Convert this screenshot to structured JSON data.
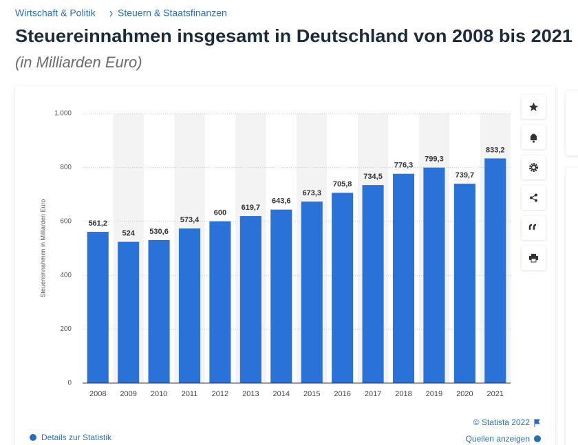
{
  "breadcrumb": [
    "Wirtschaft & Politik",
    "Steuern & Staatsfinanzen"
  ],
  "chart_data": {
    "type": "bar",
    "title": "Steuereinnahmen insgesamt in Deutschland von 2008 bis 2021",
    "subtitle": "(in Milliarden Euro)",
    "y_label": "Steuereinnahmen in Milliarden Euro",
    "categories": [
      "2008",
      "2009",
      "2010",
      "2011",
      "2012",
      "2013",
      "2014",
      "2015",
      "2016",
      "2017",
      "2018",
      "2019",
      "2020",
      "2021"
    ],
    "values": [
      561.2,
      524,
      530.6,
      573.4,
      600,
      619.7,
      643.6,
      673.3,
      705.8,
      734.5,
      776.3,
      799.3,
      739.7,
      833.2
    ],
    "value_labels": [
      "561,2",
      "524",
      "530,6",
      "573,4",
      "600",
      "619,7",
      "643,6",
      "673,3",
      "705,8",
      "734,5",
      "776,3",
      "799,3",
      "739,7",
      "833,2"
    ],
    "color": "#2b72d8",
    "ylim": [
      0,
      1000
    ],
    "yticks": [
      0,
      200,
      400,
      600,
      800,
      {
        "value": 1000,
        "label": "1.000"
      }
    ],
    "grid": true
  },
  "footer": {
    "copyright": "© Statista 2022",
    "details": "Details zur Statistik",
    "sources": "Quellen anzeigen"
  }
}
